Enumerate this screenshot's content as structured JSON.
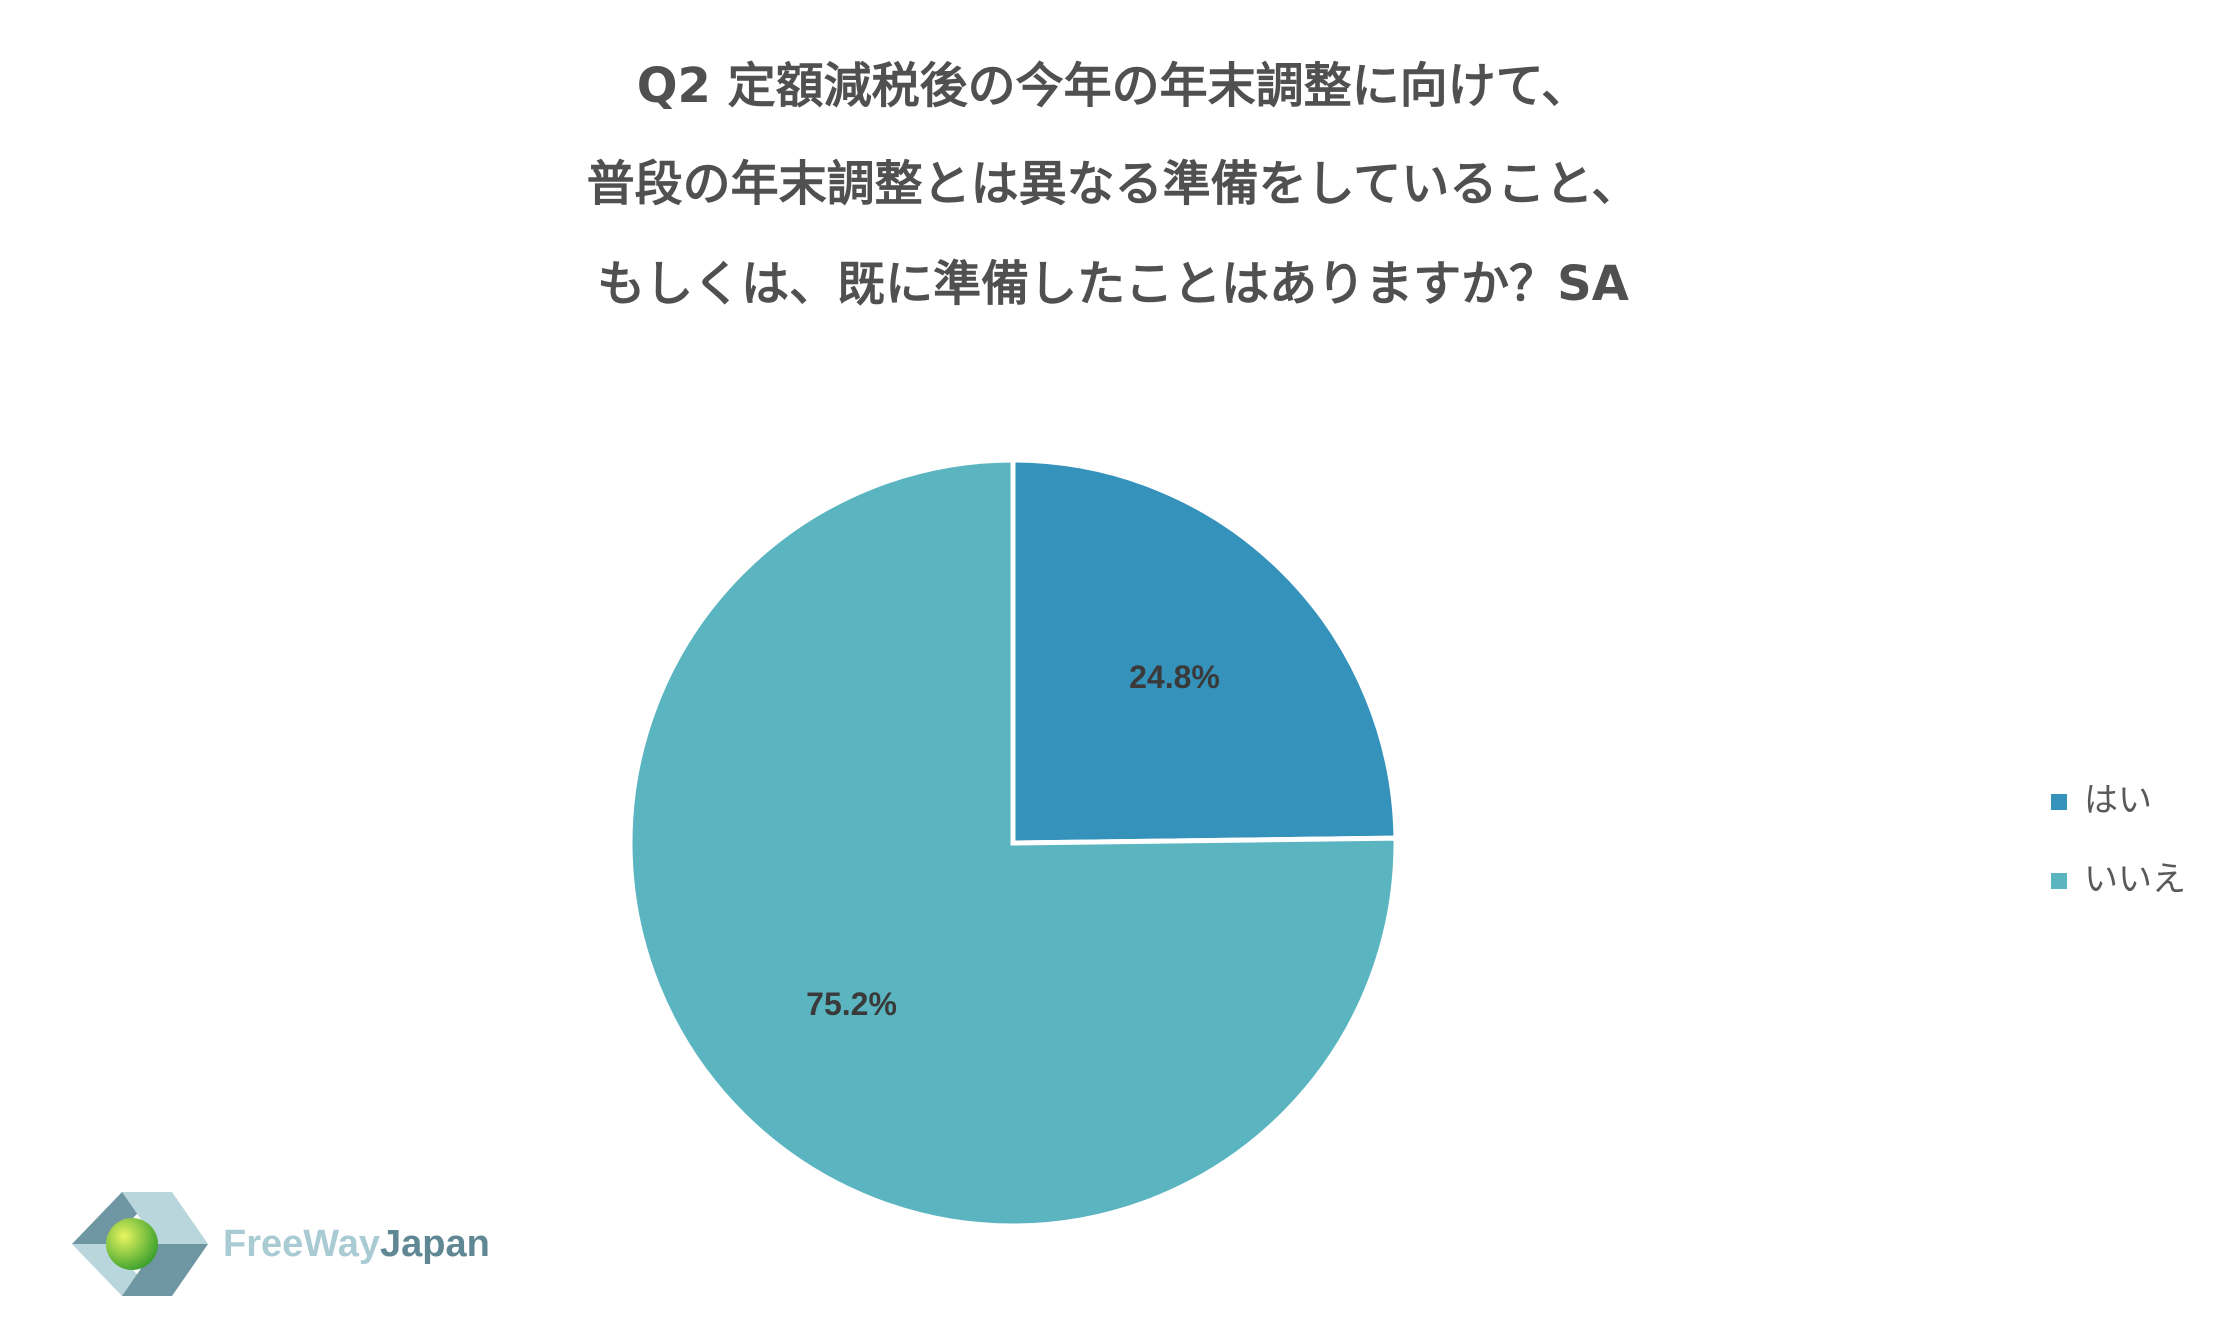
{
  "chart_data": {
    "type": "pie",
    "title": [
      "Q2 定額減税後の今年の年末調整に向けて、",
      "普段の年末調整とは異なる準備をしていること、",
      "もしくは、既に準備したことはありますか？SA"
    ],
    "categories": [
      "はい",
      "いいえ"
    ],
    "values": [
      24.8,
      75.2
    ],
    "value_labels": [
      "24.8%",
      "75.2%"
    ],
    "colors": [
      "#3592bb",
      "#5ab5c0"
    ],
    "legend": "right"
  },
  "logo": {
    "part1": "FreeWay",
    "part2": "Japan"
  }
}
